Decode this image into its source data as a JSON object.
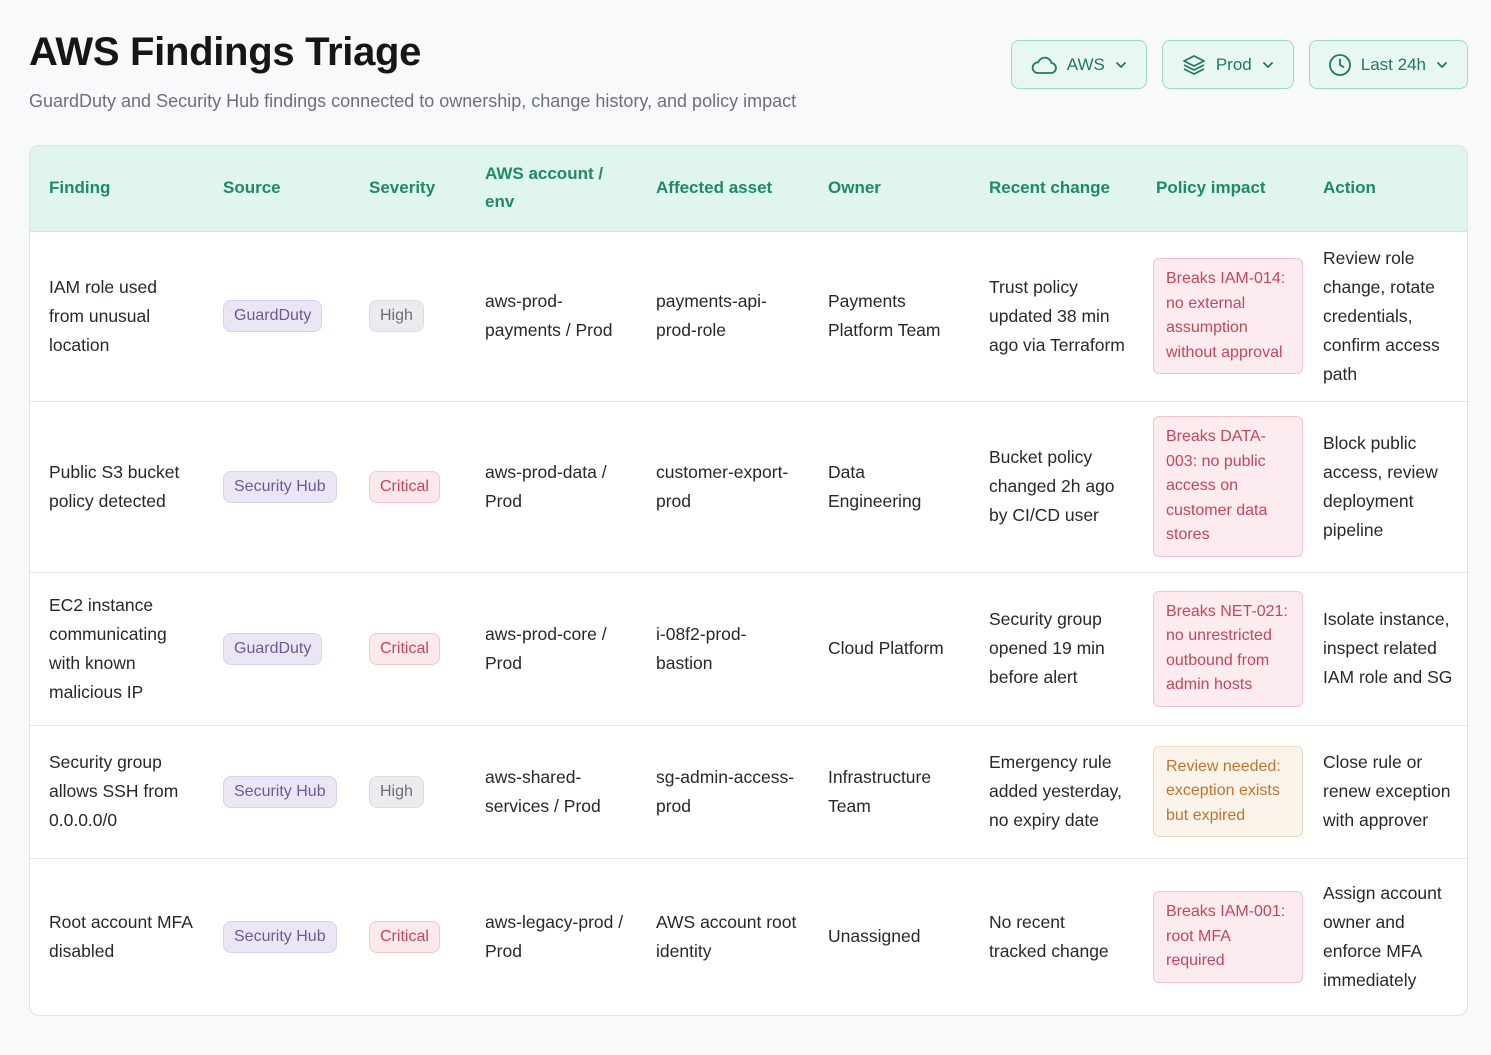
{
  "header": {
    "title": "AWS Findings Triage",
    "subtitle": "GuardDuty and Security Hub findings connected to ownership, change history, and policy impact"
  },
  "filters": [
    {
      "label": "AWS",
      "icon": "cloud-icon"
    },
    {
      "label": "Prod",
      "icon": "layers-icon"
    },
    {
      "label": "Last 24h",
      "icon": "clock-icon"
    }
  ],
  "table": {
    "columns": [
      "Finding",
      "Source",
      "Severity",
      "AWS account / env",
      "Affected asset",
      "Owner",
      "Recent change",
      "Policy impact",
      "Action"
    ],
    "rows": [
      {
        "finding": "IAM role used from unusual location",
        "source": "GuardDuty",
        "severity": "High",
        "account": "aws-prod-payments / Prod",
        "asset": "payments-api-prod-role",
        "owner": "Payments Platform Team",
        "change": "Trust policy updated 38 min ago via Terraform",
        "policy": "Breaks IAM-014: no external assumption without approval",
        "policy_kind": "breaks",
        "action": "Review role change, rotate credentials, confirm access path"
      },
      {
        "finding": "Public S3 bucket policy detected",
        "source": "Security Hub",
        "severity": "Critical",
        "account": "aws-prod-data / Prod",
        "asset": "customer-export-prod",
        "owner": "Data Engineering",
        "change": "Bucket policy changed 2h ago by CI/CD user",
        "policy": "Breaks DATA-003: no public access on customer data stores",
        "policy_kind": "breaks",
        "action": "Block public access, review deployment pipeline"
      },
      {
        "finding": "EC2 instance communicating with known malicious IP",
        "source": "GuardDuty",
        "severity": "Critical",
        "account": "aws-prod-core / Prod",
        "asset": "i-08f2-prod-bastion",
        "owner": "Cloud Platform",
        "change": "Security group opened 19 min before alert",
        "policy": "Breaks NET-021: no unrestricted outbound from admin hosts",
        "policy_kind": "breaks",
        "action": "Isolate instance, inspect related IAM role and SG"
      },
      {
        "finding": "Security group allows SSH from 0.0.0.0/0",
        "source": "Security Hub",
        "severity": "High",
        "account": "aws-shared-services / Prod",
        "asset": "sg-admin-access-prod",
        "owner": "Infrastructure Team",
        "change": "Emergency rule added yesterday, no expiry date",
        "policy": "Review needed: exception exists but expired",
        "policy_kind": "review",
        "action": "Close rule or renew exception with approver"
      },
      {
        "finding": "Root account MFA disabled",
        "source": "Security Hub",
        "severity": "Critical",
        "account": "aws-legacy-prod / Prod",
        "asset": "AWS account root identity",
        "owner": "Unassigned",
        "change": "No recent tracked change",
        "policy": "Breaks IAM-001: root MFA required",
        "policy_kind": "breaks",
        "action": "Assign account owner and enforce MFA immediately"
      }
    ]
  }
}
